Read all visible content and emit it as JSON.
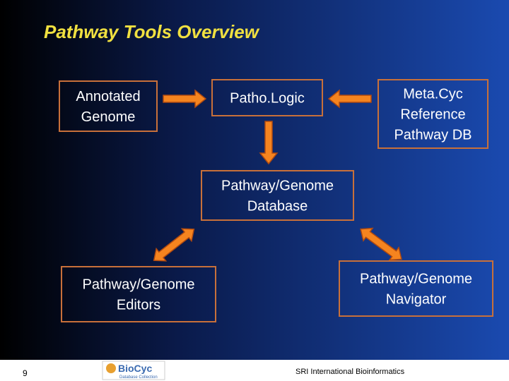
{
  "header": {
    "title": "Pathway Tools Overview"
  },
  "nodes": [
    {
      "lines": [
        "Annotated",
        "Genome"
      ]
    },
    {
      "lines": [
        "Patho.Logic"
      ]
    },
    {
      "lines": [
        "Meta.Cyc",
        "Reference",
        "Pathway DB"
      ]
    },
    {
      "lines": [
        "Pathway/Genome",
        "Database"
      ]
    },
    {
      "lines": [
        "Pathway/Genome",
        "Editors"
      ]
    },
    {
      "lines": [
        "Pathway/Genome",
        "Navigator"
      ]
    }
  ],
  "footer": {
    "page_number": "9",
    "logo": "BioCyc",
    "logo_subtitle": "Database Collection",
    "credit": "SRI International Bioinformatics"
  }
}
